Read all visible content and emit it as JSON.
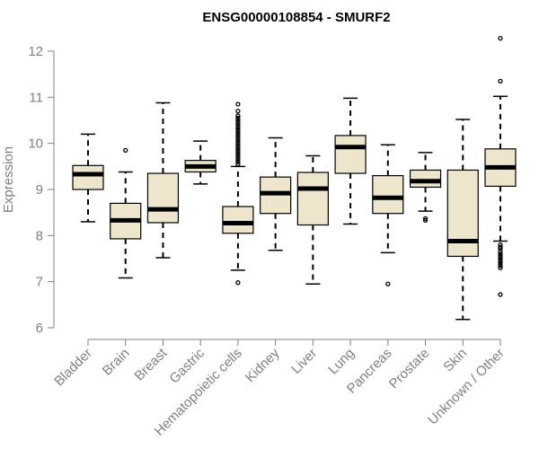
{
  "chart_data": {
    "type": "boxplot",
    "title": "ENSG00000108854 - SMURF2",
    "xlabel": "",
    "ylabel": "Expression",
    "ylim": [
      6,
      12.4
    ],
    "yticks": [
      6,
      7,
      8,
      9,
      10,
      11,
      12
    ],
    "grid": false,
    "legend": "none",
    "colors": {
      "box_fill": "#ede6cc",
      "stroke": "#000000",
      "axis": "#808080"
    },
    "categories": [
      "Bladder",
      "Brain",
      "Breast",
      "Gastric",
      "Hematopoietic cells",
      "Kidney",
      "Liver",
      "Lung",
      "Pancreas",
      "Prostate",
      "Skin",
      "Unknown / Other"
    ],
    "boxes": [
      {
        "category": "Bladder",
        "whisker_low": 8.3,
        "q1": 9.0,
        "median": 9.33,
        "q3": 9.52,
        "whisker_high": 10.2,
        "outliers": []
      },
      {
        "category": "Brain",
        "whisker_low": 7.08,
        "q1": 7.93,
        "median": 8.33,
        "q3": 8.7,
        "whisker_high": 9.38,
        "outliers": [
          9.85
        ]
      },
      {
        "category": "Breast",
        "whisker_low": 7.52,
        "q1": 8.28,
        "median": 8.57,
        "q3": 9.35,
        "whisker_high": 10.88,
        "outliers": []
      },
      {
        "category": "Gastric",
        "whisker_low": 9.12,
        "q1": 9.38,
        "median": 9.5,
        "q3": 9.63,
        "whisker_high": 10.05,
        "outliers": []
      },
      {
        "category": "Hematopoietic cells",
        "whisker_low": 7.25,
        "q1": 8.05,
        "median": 8.27,
        "q3": 8.63,
        "whisker_high": 9.5,
        "outliers": [
          6.98,
          9.55,
          9.6,
          9.65,
          9.7,
          9.75,
          9.8,
          9.85,
          9.9,
          9.95,
          10.0,
          10.05,
          10.1,
          10.15,
          10.2,
          10.25,
          10.3,
          10.35,
          10.4,
          10.45,
          10.5,
          10.55,
          10.6,
          10.7,
          10.85
        ]
      },
      {
        "category": "Kidney",
        "whisker_low": 7.68,
        "q1": 8.48,
        "median": 8.92,
        "q3": 9.27,
        "whisker_high": 10.12,
        "outliers": []
      },
      {
        "category": "Liver",
        "whisker_low": 6.95,
        "q1": 8.23,
        "median": 9.02,
        "q3": 9.37,
        "whisker_high": 9.73,
        "outliers": []
      },
      {
        "category": "Lung",
        "whisker_low": 8.25,
        "q1": 9.35,
        "median": 9.92,
        "q3": 10.17,
        "whisker_high": 10.98,
        "outliers": []
      },
      {
        "category": "Pancreas",
        "whisker_low": 7.63,
        "q1": 8.48,
        "median": 8.82,
        "q3": 9.3,
        "whisker_high": 9.97,
        "outliers": [
          6.95
        ]
      },
      {
        "category": "Prostate",
        "whisker_low": 8.53,
        "q1": 9.05,
        "median": 9.18,
        "q3": 9.42,
        "whisker_high": 9.8,
        "outliers": [
          8.33,
          8.37
        ]
      },
      {
        "category": "Skin",
        "whisker_low": 6.18,
        "q1": 7.55,
        "median": 7.88,
        "q3": 9.42,
        "whisker_high": 10.52,
        "outliers": []
      },
      {
        "category": "Unknown / Other",
        "whisker_low": 7.88,
        "q1": 9.07,
        "median": 9.48,
        "q3": 9.88,
        "whisker_high": 11.02,
        "outliers": [
          6.72,
          7.3,
          7.35,
          7.4,
          7.45,
          7.5,
          7.55,
          7.6,
          7.65,
          7.72,
          7.75,
          7.8,
          11.35,
          12.28
        ]
      }
    ]
  }
}
